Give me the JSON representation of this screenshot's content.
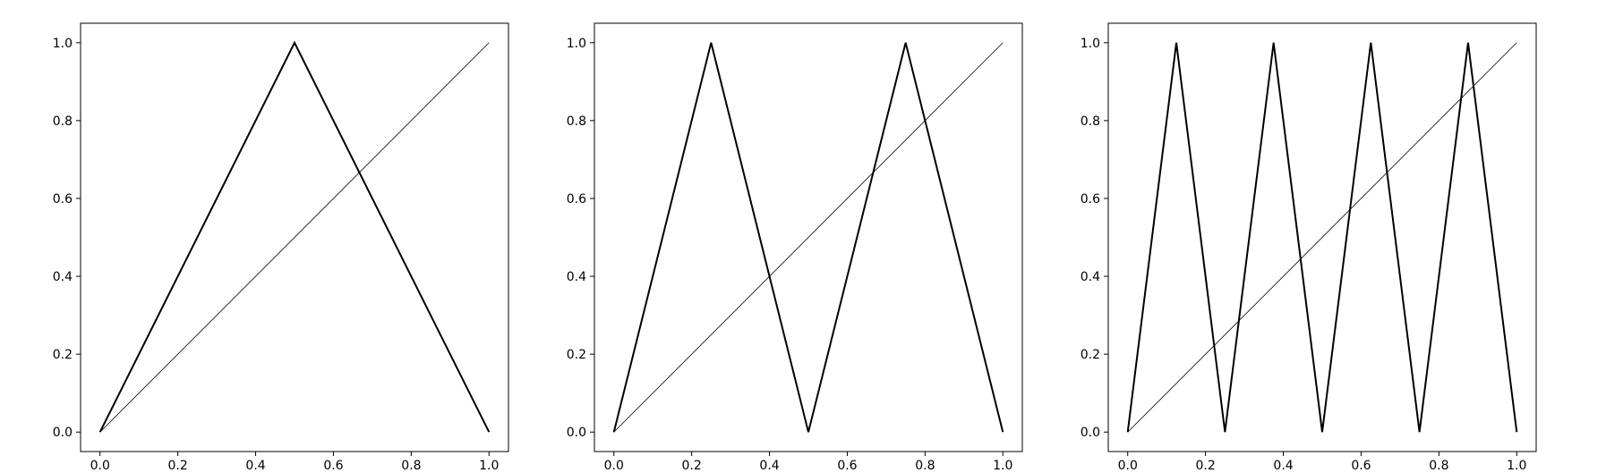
{
  "chart_data": [
    {
      "type": "line",
      "xlim": [
        -0.05,
        1.05
      ],
      "ylim": [
        -0.05,
        1.05
      ],
      "xticks": [
        0.0,
        0.2,
        0.4,
        0.6,
        0.8,
        1.0
      ],
      "yticks": [
        0.0,
        0.2,
        0.4,
        0.6,
        0.8,
        1.0
      ],
      "xtick_labels": [
        "0.0",
        "0.2",
        "0.4",
        "0.6",
        "0.8",
        "1.0"
      ],
      "ytick_labels": [
        "0.0",
        "0.2",
        "0.4",
        "0.6",
        "0.8",
        "1.0"
      ],
      "grid": false,
      "series": [
        {
          "style": "thick",
          "color": "#000000",
          "x": [
            0.0,
            0.5,
            1.0
          ],
          "y": [
            0.0,
            1.0,
            0.0
          ]
        },
        {
          "style": "thin",
          "color": "#000000",
          "x": [
            0.0,
            1.0
          ],
          "y": [
            0.0,
            1.0
          ]
        }
      ]
    },
    {
      "type": "line",
      "xlim": [
        -0.05,
        1.05
      ],
      "ylim": [
        -0.05,
        1.05
      ],
      "xticks": [
        0.0,
        0.2,
        0.4,
        0.6,
        0.8,
        1.0
      ],
      "yticks": [
        0.0,
        0.2,
        0.4,
        0.6,
        0.8,
        1.0
      ],
      "xtick_labels": [
        "0.0",
        "0.2",
        "0.4",
        "0.6",
        "0.8",
        "1.0"
      ],
      "ytick_labels": [
        "0.0",
        "0.2",
        "0.4",
        "0.6",
        "0.8",
        "1.0"
      ],
      "grid": false,
      "series": [
        {
          "style": "thick",
          "color": "#000000",
          "x": [
            0.0,
            0.25,
            0.5,
            0.75,
            1.0
          ],
          "y": [
            0.0,
            1.0,
            0.0,
            1.0,
            0.0
          ]
        },
        {
          "style": "thin",
          "color": "#000000",
          "x": [
            0.0,
            1.0
          ],
          "y": [
            0.0,
            1.0
          ]
        }
      ]
    },
    {
      "type": "line",
      "xlim": [
        -0.05,
        1.05
      ],
      "ylim": [
        -0.05,
        1.05
      ],
      "xticks": [
        0.0,
        0.2,
        0.4,
        0.6,
        0.8,
        1.0
      ],
      "yticks": [
        0.0,
        0.2,
        0.4,
        0.6,
        0.8,
        1.0
      ],
      "xtick_labels": [
        "0.0",
        "0.2",
        "0.4",
        "0.6",
        "0.8",
        "1.0"
      ],
      "ytick_labels": [
        "0.0",
        "0.2",
        "0.4",
        "0.6",
        "0.8",
        "1.0"
      ],
      "grid": false,
      "series": [
        {
          "style": "thick",
          "color": "#000000",
          "x": [
            0.0,
            0.125,
            0.25,
            0.375,
            0.5,
            0.625,
            0.75,
            0.875,
            1.0
          ],
          "y": [
            0.0,
            1.0,
            0.0,
            1.0,
            0.0,
            1.0,
            0.0,
            1.0,
            0.0
          ]
        },
        {
          "style": "thin",
          "color": "#000000",
          "x": [
            0.0,
            1.0
          ],
          "y": [
            0.0,
            1.0
          ]
        }
      ]
    }
  ]
}
